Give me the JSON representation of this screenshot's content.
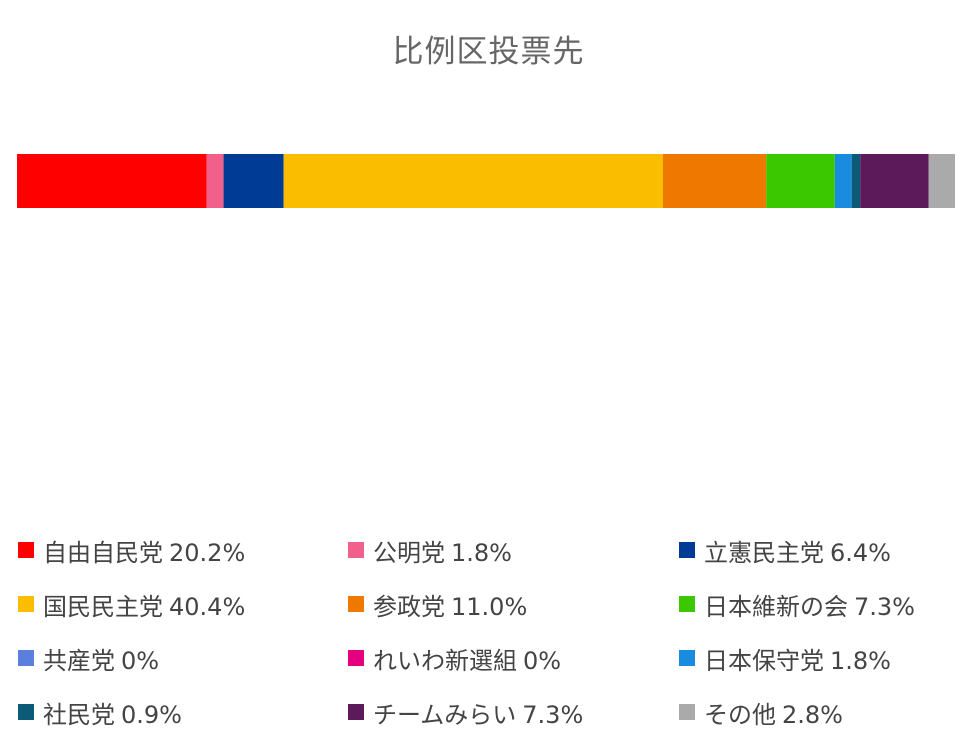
{
  "chart_data": {
    "type": "bar",
    "orientation": "horizontal-stacked-100",
    "title": "比例区投票先",
    "categories": [
      "自由自民党",
      "公明党",
      "立憲民主党",
      "国民民主党",
      "参政党",
      "日本維新の会",
      "共産党",
      "れいわ新選組",
      "日本保守党",
      "社民党",
      "チームみらい",
      "その他"
    ],
    "series": [
      {
        "name": "自由自民党",
        "value": 20.2,
        "label": "20.2%",
        "color": "#ff0000"
      },
      {
        "name": "公明党",
        "value": 1.8,
        "label": "1.8%",
        "color": "#f0608a"
      },
      {
        "name": "立憲民主党",
        "value": 6.4,
        "label": "6.4%",
        "color": "#003c96"
      },
      {
        "name": "国民民主党",
        "value": 40.4,
        "label": "40.4%",
        "color": "#fbbd00"
      },
      {
        "name": "参政党",
        "value": 11.0,
        "label": "11.0%",
        "color": "#ee7800"
      },
      {
        "name": "日本維新の会",
        "value": 7.3,
        "label": "7.3%",
        "color": "#3cc800"
      },
      {
        "name": "共産党",
        "value": 0,
        "label": "0%",
        "color": "#5a7fdc"
      },
      {
        "name": "れいわ新選組",
        "value": 0,
        "label": "0%",
        "color": "#e4007f"
      },
      {
        "name": "日本保守党",
        "value": 1.8,
        "label": "1.8%",
        "color": "#1a8ce0"
      },
      {
        "name": "社民党",
        "value": 0.9,
        "label": "0.9%",
        "color": "#0a5a78"
      },
      {
        "name": "チームみらい",
        "value": 7.3,
        "label": "7.3%",
        "color": "#5c1a5a"
      },
      {
        "name": "その他",
        "value": 2.8,
        "label": "2.8%",
        "color": "#aaaaaa"
      }
    ],
    "legend_position": "bottom",
    "grid": false
  }
}
